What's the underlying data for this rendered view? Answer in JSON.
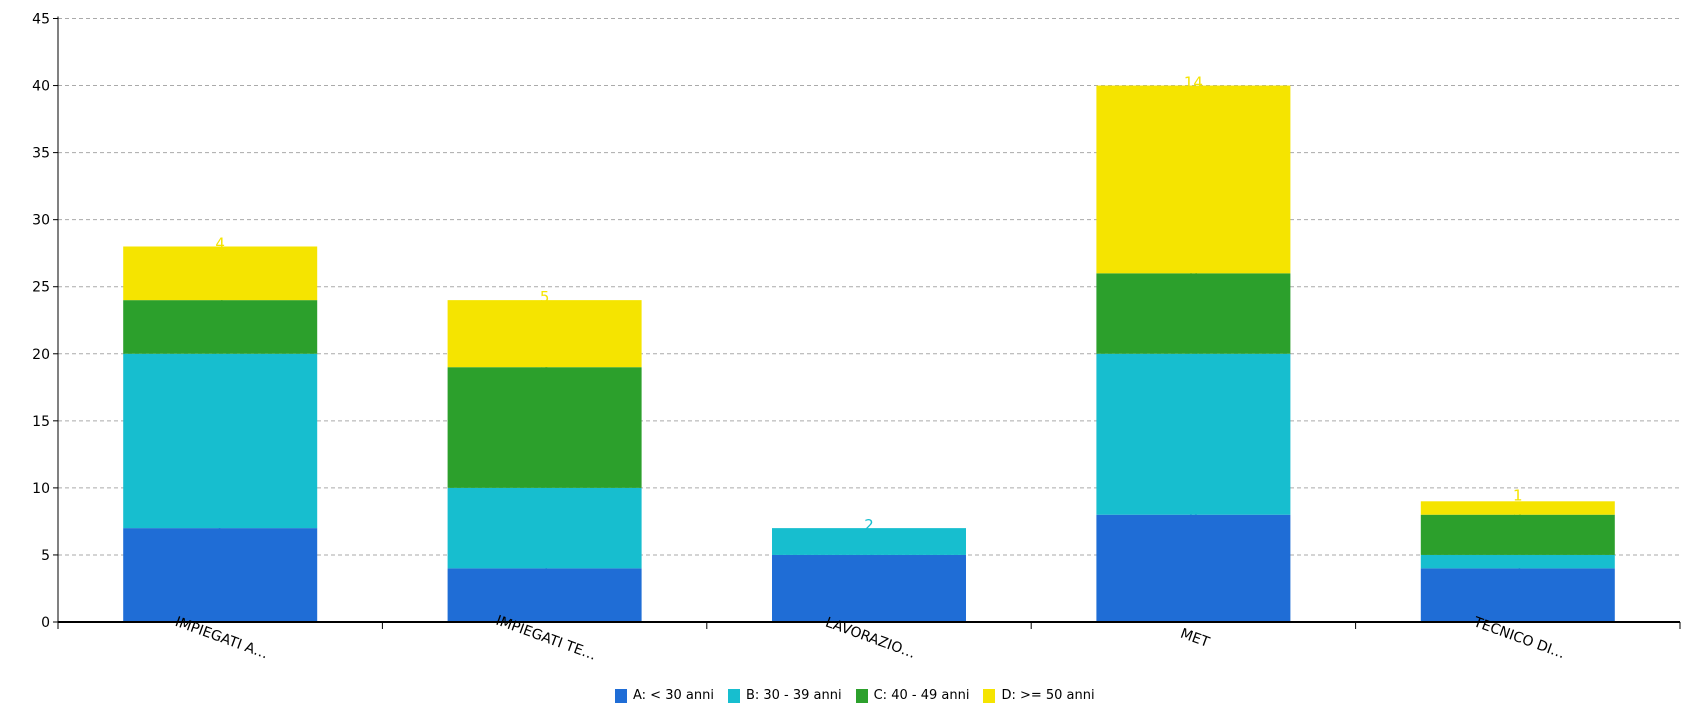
{
  "chart_data": {
    "type": "bar",
    "stacked": true,
    "categories": [
      "IMPIEGATI A…",
      "IMPIEGATI TE…",
      "LAVORAZIO…",
      "MET",
      "TECNICO DI…"
    ],
    "series": [
      {
        "name": "A: < 30 anni",
        "color": "#1f6dd6",
        "values": [
          7,
          4,
          5,
          8,
          4
        ]
      },
      {
        "name": "B: 30 - 39 anni",
        "color": "#17becf",
        "values": [
          13,
          6,
          2,
          12,
          1
        ]
      },
      {
        "name": "C: 40 - 49 anni",
        "color": "#2ca02c",
        "values": [
          4,
          9,
          0,
          6,
          3
        ]
      },
      {
        "name": "D: >= 50 anni",
        "color": "#f5e400",
        "values": [
          4,
          5,
          0,
          14,
          1
        ]
      }
    ],
    "ylim": [
      0,
      45
    ],
    "yticks": [
      0,
      5,
      10,
      15,
      20,
      25,
      30,
      35,
      40,
      45
    ],
    "grid": true,
    "legend": "bottom",
    "xlabel": "",
    "ylabel": "",
    "title": ""
  }
}
